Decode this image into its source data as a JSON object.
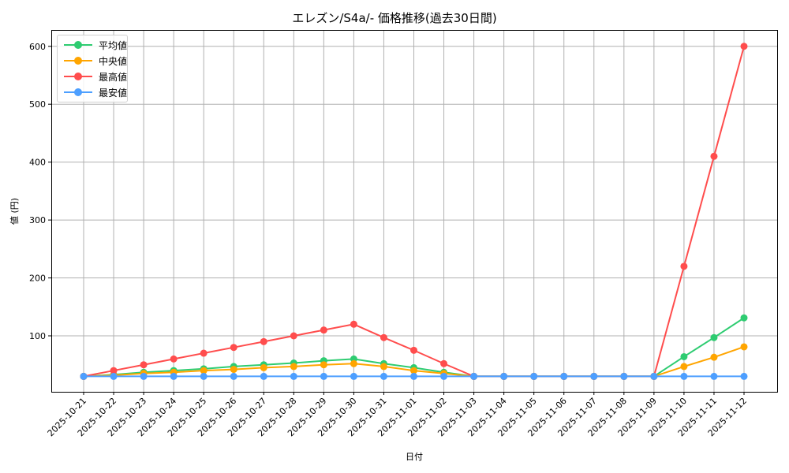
{
  "title": "エレズン/S4a/- 価格推移(過去30日間)",
  "chart_data": {
    "type": "line",
    "title": "エレズン/S4a/- 価格推移(過去30日間)",
    "xlabel": "日付",
    "ylabel": "値 (円)",
    "ylim": [
      0,
      630
    ],
    "yticks": [
      100,
      200,
      300,
      400,
      500,
      600
    ],
    "grid": true,
    "legend_position": "upper left",
    "categories": [
      "2025-10-21",
      "2025-10-22",
      "2025-10-23",
      "2025-10-24",
      "2025-10-25",
      "2025-10-26",
      "2025-10-27",
      "2025-10-28",
      "2025-10-29",
      "2025-10-30",
      "2025-10-31",
      "2025-11-01",
      "2025-11-02",
      "2025-11-03",
      "2025-11-04",
      "2025-11-05",
      "2025-11-06",
      "2025-11-07",
      "2025-11-08",
      "2025-11-09",
      "2025-11-10",
      "2025-11-11",
      "2025-11-12"
    ],
    "series": [
      {
        "name": "平均値",
        "color": "#2ecc71",
        "values": [
          30,
          33,
          37,
          40,
          43,
          47,
          50,
          53,
          57,
          60,
          52,
          45,
          37,
          30,
          30,
          30,
          30,
          30,
          30,
          30,
          64,
          97,
          131
        ]
      },
      {
        "name": "中央値",
        "color": "#ffa500",
        "values": [
          30,
          32,
          35,
          37,
          40,
          42,
          45,
          47,
          50,
          52,
          47,
          40,
          35,
          30,
          30,
          30,
          30,
          30,
          30,
          30,
          47,
          63,
          81
        ]
      },
      {
        "name": "最高値",
        "color": "#ff4d4d",
        "values": [
          30,
          40,
          50,
          60,
          70,
          80,
          90,
          100,
          110,
          120,
          97,
          75,
          52,
          30,
          30,
          30,
          30,
          30,
          30,
          30,
          220,
          410,
          600
        ]
      },
      {
        "name": "最安値",
        "color": "#4d9fff",
        "values": [
          30,
          30,
          30,
          30,
          30,
          30,
          30,
          30,
          30,
          30,
          30,
          30,
          30,
          30,
          30,
          30,
          30,
          30,
          30,
          30,
          30,
          30,
          30
        ]
      }
    ]
  }
}
